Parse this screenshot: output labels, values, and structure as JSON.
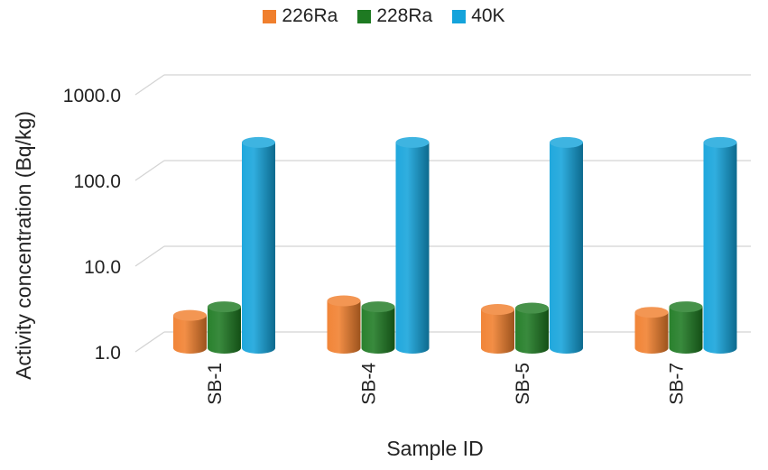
{
  "chart_data": {
    "type": "bar",
    "style": "3d-cylinder",
    "title": "",
    "xlabel": "Sample ID",
    "ylabel": "Activity concentration (Bq/kg)",
    "yscale": "log",
    "ylim": [
      1.0,
      1000.0
    ],
    "yticks": [
      "1.0",
      "10.0",
      "100.0",
      "1000.0"
    ],
    "categories": [
      "SB-1",
      "SB-4",
      "SB-5",
      "SB-7"
    ],
    "series": [
      {
        "name": "226Ra",
        "color": "#F07F2D",
        "values": [
          2.3,
          3.4,
          2.7,
          2.5
        ]
      },
      {
        "name": "228Ra",
        "color": "#1E7A22",
        "values": [
          2.9,
          2.9,
          2.8,
          2.9
        ]
      },
      {
        "name": "40K",
        "color": "#14A3DB",
        "values": [
          240,
          240,
          240,
          240
        ]
      }
    ],
    "grid": true,
    "legend": "top-center"
  }
}
